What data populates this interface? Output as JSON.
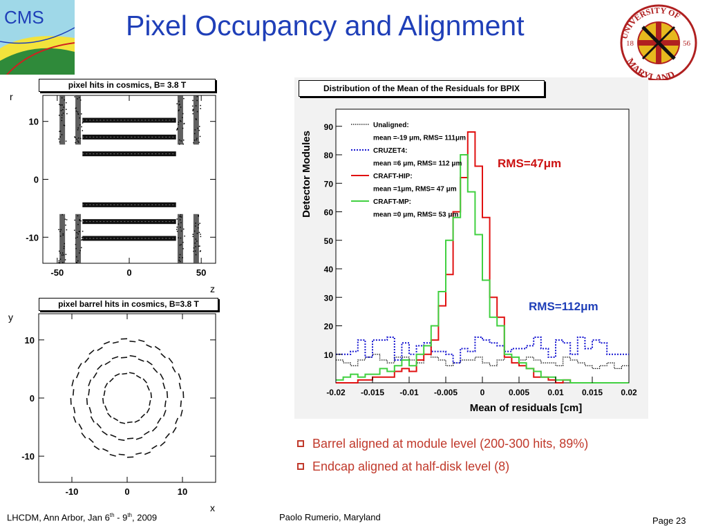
{
  "slide": {
    "title": "Pixel Occupancy and Alignment",
    "footer_event": "LHCDM, Ann Arbor, Jan 6",
    "footer_sup1": "th",
    "footer_dash": " - 9",
    "footer_sup2": "th",
    "footer_year": ", 2009",
    "footer_author": "Paolo Rumerio,  Maryland",
    "footer_page": "Page 23"
  },
  "logos": {
    "cms_text": "CMS",
    "umd_top": "UNIVERSITY OF",
    "umd_bottom": "MARYLAND",
    "umd_year_left": "18",
    "umd_year_right": "56"
  },
  "bullets": [
    "Barrel aligned at module level (200-300 hits, 89%)",
    "Endcap aligned at half-disk level (8)"
  ],
  "colors": {
    "title": "#1f3fb8",
    "bullet": "#c0392b",
    "unaligned": "#000000",
    "cruzet4": "#1010d0",
    "craft_hip": "#e01010",
    "craft_mp": "#40d040"
  },
  "chart_data": [
    {
      "type": "scatter",
      "title": "pixel hits in cosmics, B= 3.8 T",
      "xlabel": "z",
      "ylabel": "r",
      "xlim": [
        -60,
        60
      ],
      "ylim": [
        -14.5,
        14.5
      ],
      "xticks": [
        -50,
        0,
        50
      ],
      "yticks": [
        10,
        0,
        -10
      ],
      "barrel_layers_r": [
        10.2,
        7.3,
        4.4,
        -4.4,
        -7.3,
        -10.2
      ],
      "barrel_z_range": [
        -32.5,
        32.5
      ],
      "endcap_disks_z": [
        -46.5,
        -35.5,
        35.5,
        46.5
      ],
      "endcap_r_ranges": [
        [
          6,
          14.5
        ],
        [
          -14.5,
          -6
        ]
      ]
    },
    {
      "type": "scatter",
      "title": "pixel barrel hits in cosmics, B=3.8 T",
      "xlabel": "x",
      "ylabel": "y",
      "xlim": [
        -16,
        16
      ],
      "ylim": [
        -14.5,
        14.5
      ],
      "xticks": [
        -10,
        0,
        10
      ],
      "yticks": [
        10,
        0,
        -10
      ],
      "layers_radius": [
        10.2,
        7.3,
        4.4
      ],
      "layers_segments": [
        40,
        28,
        20
      ]
    },
    {
      "type": "line",
      "title": "Distribution of the Mean of the Residuals for BPIX",
      "xlabel": "Mean of residuals [cm]",
      "ylabel": "Detector Modules",
      "xlim": [
        -0.02,
        0.02
      ],
      "ylim": [
        0,
        96
      ],
      "xticks": [
        -0.02,
        -0.015,
        -0.01,
        -0.005,
        0,
        0.005,
        0.01,
        0.015,
        0.02
      ],
      "xtick_labels": [
        "-0.02",
        "-0.015",
        "-0.01",
        "-0.005",
        "0",
        "0.005",
        "0.01",
        "0.015",
        "0.02"
      ],
      "yticks": [
        10,
        20,
        30,
        40,
        50,
        60,
        70,
        80,
        90
      ],
      "bin_edges_start": -0.02,
      "bin_width": 0.001,
      "annotations": [
        "RMS=47μm",
        "RMS=112μm"
      ],
      "legend_position": "top-left",
      "series": [
        {
          "name": "Unaligned:",
          "detail": "mean =-19 μm, RMS= 111μm",
          "style": "dotted",
          "values": [
            8,
            7,
            6,
            8,
            9,
            10,
            8,
            7,
            9,
            9,
            8,
            7,
            10,
            9,
            8,
            6,
            7,
            8,
            8,
            9,
            7,
            6,
            8,
            9,
            7,
            8,
            9,
            8,
            7,
            7,
            6,
            9,
            8,
            7,
            6,
            5,
            6,
            7,
            5,
            6
          ]
        },
        {
          "name": "CRUZET4:",
          "detail": "mean =6 μm, RMS= 112 μm",
          "style": "dotted",
          "values": [
            10,
            10,
            11,
            15,
            9,
            15,
            15,
            16,
            8,
            14,
            10,
            13,
            14,
            11,
            11,
            10,
            7,
            12,
            11,
            16,
            15,
            14,
            13,
            11,
            12,
            12,
            13,
            16,
            12,
            9,
            15,
            14,
            10,
            16,
            12,
            15,
            14,
            10,
            10,
            10
          ]
        },
        {
          "name": "CRAFT-HIP:",
          "detail": "mean =1μm, RMS= 47 μm",
          "style": "solid",
          "values": [
            0,
            0,
            0,
            1,
            1,
            2,
            2,
            2,
            4,
            5,
            4,
            8,
            10,
            15,
            27,
            38,
            60,
            72,
            88,
            76,
            58,
            30,
            23,
            9,
            7,
            6,
            5,
            2,
            2,
            1,
            0,
            1,
            0,
            0,
            0,
            0,
            0,
            0,
            0,
            0
          ]
        },
        {
          "name": "CRAFT-MP:",
          "detail": "mean =0 μm, RMS= 53 μm",
          "style": "solid",
          "values": [
            1,
            2,
            3,
            2,
            3,
            3,
            5,
            4,
            6,
            8,
            6,
            10,
            13,
            20,
            32,
            50,
            58,
            80,
            67,
            52,
            36,
            23,
            20,
            10,
            9,
            7,
            5,
            4,
            2,
            2,
            1,
            1,
            0,
            0,
            0,
            0,
            0,
            0,
            0,
            0
          ]
        }
      ]
    }
  ]
}
